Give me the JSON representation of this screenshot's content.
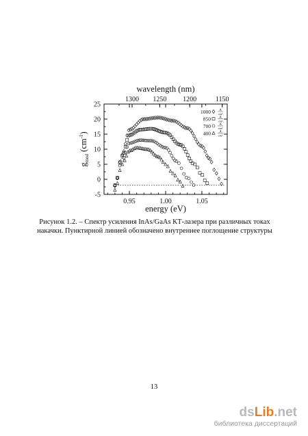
{
  "figure": {
    "chart_data": {
      "type": "scatter",
      "title": "",
      "xlabel": "energy (eV)",
      "ylabel_main": "g",
      "ylabel_sub": "mod",
      "ylabel_unit": "(cm",
      "ylabel_exp": "-1",
      "ylabel_close": ")",
      "top_axis_label": "wavelength (nm)",
      "xlim": [
        0.915,
        1.085
      ],
      "ylim": [
        -5,
        25
      ],
      "x_ticks": [
        "0.95",
        "1.00",
        "1.05"
      ],
      "x_tick_values": [
        0.95,
        1.0,
        1.05
      ],
      "y_ticks": [
        "-5",
        "0",
        "5",
        "10",
        "15",
        "20",
        "25"
      ],
      "y_tick_values": [
        -5,
        0,
        5,
        10,
        15,
        20,
        25
      ],
      "top_ticks": [
        "1300",
        "1250",
        "1200",
        "1150"
      ],
      "top_tick_values": [
        1300,
        1250,
        1200,
        1150
      ],
      "internal_absorption_level": -1.9,
      "legend_position": "top-right",
      "series": [
        {
          "name": "1000",
          "marker": "diamond",
          "x": [
            0.93,
            0.94,
            0.95,
            0.97,
            0.99,
            1.01,
            1.03,
            1.05,
            1.06,
            1.07,
            1.077
          ],
          "y": [
            -2.2,
            8.2,
            16.5,
            20.0,
            20.5,
            19.5,
            17.0,
            11.0,
            7.0,
            2.0,
            -1.5
          ]
        },
        {
          "name": "850",
          "marker": "square",
          "x": [
            0.93,
            0.94,
            0.95,
            0.965,
            0.98,
            1.0,
            1.02,
            1.04,
            1.05,
            1.055,
            1.06
          ],
          "y": [
            -2.0,
            7.8,
            14.7,
            16.5,
            16.8,
            15.5,
            11.5,
            5.0,
            1.5,
            -0.5,
            -2.2
          ]
        },
        {
          "name": "700",
          "marker": "circle",
          "x": [
            0.93,
            0.94,
            0.95,
            0.965,
            0.98,
            1.0,
            1.015,
            1.03,
            1.04
          ],
          "y": [
            -1.9,
            6.5,
            12.0,
            13.0,
            12.8,
            10.5,
            6.0,
            0.5,
            -2.0
          ]
        },
        {
          "name": "400",
          "marker": "triangle",
          "x": [
            0.93,
            0.94,
            0.95,
            0.96,
            0.975,
            0.99,
            1.0,
            1.01,
            1.02,
            1.025
          ],
          "y": [
            -3.5,
            5.0,
            9.5,
            10.5,
            10.0,
            7.5,
            5.0,
            2.0,
            -0.8,
            -2.5
          ]
        }
      ],
      "legend_unit_top": "A",
      "legend_unit_bottom": "cm²"
    }
  },
  "caption": {
    "line1": "Рисунок 1.2. – Спектр усиления InAs/GaAs КТ-лазера при различных токах",
    "line2": "накачки. Пунктирной линией обозначено внутреннее поглощение структуры"
  },
  "page_number": "13",
  "watermark": {
    "logo_part1": "ds",
    "logo_part2": "Lib",
    "logo_part3": ".net",
    "tagline": "библиотека диссертаций"
  }
}
